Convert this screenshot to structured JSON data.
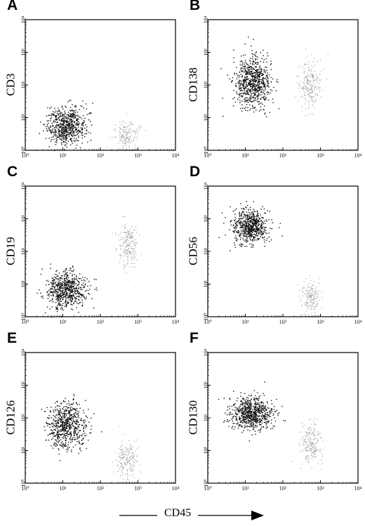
{
  "figure": {
    "xlabel": "CD45"
  },
  "chart_data": [
    {
      "type": "scatter",
      "panel": "A",
      "xlabel": "CD45",
      "ylabel": "CD3",
      "xscale": "log",
      "yscale": "log",
      "xlim": [
        1,
        10000
      ],
      "ylim": [
        1,
        10000
      ],
      "xticks": [
        "10⁰",
        "10¹",
        "10²",
        "10³",
        "10⁴"
      ],
      "yticks": [
        "10⁰",
        "10¹",
        "10²",
        "10³",
        "10⁴"
      ],
      "series": [
        {
          "color": "#111111",
          "center": [
            12,
            6
          ],
          "spread": [
            0.26,
            0.28
          ],
          "n": 650
        },
        {
          "color": "#9a9a9a",
          "center": [
            500,
            3
          ],
          "spread": [
            0.16,
            0.22
          ],
          "n": 170
        }
      ]
    },
    {
      "type": "scatter",
      "panel": "B",
      "xlabel": "CD45",
      "ylabel": "CD138",
      "xscale": "log",
      "yscale": "log",
      "xlim": [
        1,
        10000
      ],
      "ylim": [
        1,
        10000
      ],
      "xticks": [
        "10⁰",
        "10¹",
        "10²",
        "10³",
        "10⁴"
      ],
      "yticks": [
        "10⁰",
        "10¹",
        "10²",
        "10³",
        "10⁴"
      ],
      "series": [
        {
          "color": "#111111",
          "center": [
            15,
            120
          ],
          "spread": [
            0.24,
            0.38
          ],
          "n": 750
        },
        {
          "color": "#9a9a9a",
          "center": [
            500,
            100
          ],
          "spread": [
            0.15,
            0.34
          ],
          "n": 230
        }
      ]
    },
    {
      "type": "scatter",
      "panel": "C",
      "xlabel": "CD45",
      "ylabel": "CD19",
      "xscale": "log",
      "yscale": "log",
      "xlim": [
        1,
        10000
      ],
      "ylim": [
        1,
        10000
      ],
      "xticks": [
        "10⁰",
        "10¹",
        "10²",
        "10³",
        "10⁴"
      ],
      "yticks": [
        "10⁰",
        "10¹",
        "10²",
        "10³",
        "10⁴"
      ],
      "series": [
        {
          "color": "#111111",
          "center": [
            12,
            7
          ],
          "spread": [
            0.26,
            0.28
          ],
          "n": 650
        },
        {
          "color": "#9a9a9a",
          "center": [
            550,
            150
          ],
          "spread": [
            0.14,
            0.32
          ],
          "n": 210
        }
      ]
    },
    {
      "type": "scatter",
      "panel": "D",
      "xlabel": "CD45",
      "ylabel": "CD56",
      "xscale": "log",
      "yscale": "log",
      "xlim": [
        1,
        10000
      ],
      "ylim": [
        1,
        10000
      ],
      "xticks": [
        "10⁰",
        "10¹",
        "10²",
        "10³",
        "10⁴"
      ],
      "yticks": [
        "10⁰",
        "10¹",
        "10²",
        "10³",
        "10⁴"
      ],
      "series": [
        {
          "color": "#111111",
          "center": [
            13,
            600
          ],
          "spread": [
            0.24,
            0.26
          ],
          "n": 650
        },
        {
          "color": "#9a9a9a",
          "center": [
            550,
            4
          ],
          "spread": [
            0.12,
            0.24
          ],
          "n": 170
        }
      ]
    },
    {
      "type": "scatter",
      "panel": "E",
      "xlabel": "CD45",
      "ylabel": "CD126",
      "xscale": "log",
      "yscale": "log",
      "xlim": [
        1,
        10000
      ],
      "ylim": [
        1,
        10000
      ],
      "xticks": [
        "10⁰",
        "10¹",
        "10²",
        "10³",
        "10⁴"
      ],
      "yticks": [
        "10⁰",
        "10¹",
        "10²",
        "10³",
        "10⁴"
      ],
      "series": [
        {
          "color": "#111111",
          "center": [
            12,
            60
          ],
          "spread": [
            0.24,
            0.36
          ],
          "n": 650
        },
        {
          "color": "#9a9a9a",
          "center": [
            500,
            5
          ],
          "spread": [
            0.14,
            0.28
          ],
          "n": 190
        }
      ]
    },
    {
      "type": "scatter",
      "panel": "F",
      "xlabel": "CD45",
      "ylabel": "CD130",
      "xscale": "log",
      "yscale": "log",
      "xlim": [
        1,
        10000
      ],
      "ylim": [
        1,
        10000
      ],
      "xticks": [
        "10⁰",
        "10¹",
        "10²",
        "10³",
        "10⁴"
      ],
      "yticks": [
        "10⁰",
        "10¹",
        "10²",
        "10³",
        "10⁴"
      ],
      "series": [
        {
          "color": "#111111",
          "center": [
            14,
            140
          ],
          "spread": [
            0.28,
            0.24
          ],
          "n": 750
        },
        {
          "color": "#9a9a9a",
          "center": [
            550,
            15
          ],
          "spread": [
            0.15,
            0.3
          ],
          "n": 210
        }
      ]
    }
  ]
}
